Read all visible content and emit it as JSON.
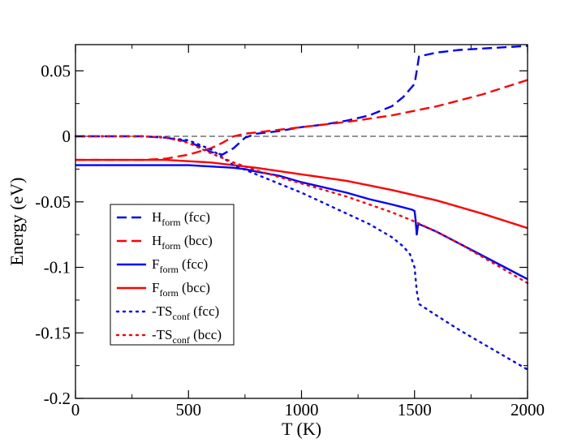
{
  "chart_data": {
    "type": "line",
    "xlabel": "T (K)",
    "ylabel": "Energy (eV)",
    "xlim": [
      0,
      2000
    ],
    "ylim": [
      -0.2,
      0.07
    ],
    "x_ticks": [
      0,
      500,
      1000,
      1500,
      2000
    ],
    "x_tick_labels": [
      "0",
      "500",
      "1000",
      "1500",
      "2000"
    ],
    "y_ticks": [
      0.05,
      0,
      -0.05,
      -0.1,
      -0.15,
      -0.2
    ],
    "y_tick_labels": [
      "0.05",
      "0",
      "-0.05",
      "-0.1",
      "-0.15",
      "-0.2"
    ],
    "zero_line": true,
    "legend_position": "center-left",
    "series": [
      {
        "name": "H_form (fcc)",
        "label": "H",
        "sub": "form",
        "suffix": " (fcc)",
        "color": "#0000ff",
        "style": "dashed",
        "points": [
          [
            0,
            0
          ],
          [
            300,
            0
          ],
          [
            400,
            -0.001
          ],
          [
            500,
            -0.004
          ],
          [
            550,
            -0.008
          ],
          [
            600,
            -0.012
          ],
          [
            650,
            -0.014
          ],
          [
            700,
            -0.009
          ],
          [
            750,
            -0.001
          ],
          [
            800,
            0.002
          ],
          [
            900,
            0.004
          ],
          [
            1000,
            0.007
          ],
          [
            1100,
            0.009
          ],
          [
            1200,
            0.012
          ],
          [
            1300,
            0.016
          ],
          [
            1400,
            0.023
          ],
          [
            1450,
            0.03
          ],
          [
            1480,
            0.036
          ],
          [
            1500,
            0.04
          ],
          [
            1510,
            0.05
          ],
          [
            1520,
            0.061
          ],
          [
            1600,
            0.064
          ],
          [
            1700,
            0.066
          ],
          [
            1800,
            0.067
          ],
          [
            1900,
            0.068
          ],
          [
            2000,
            0.069
          ]
        ]
      },
      {
        "name": "H_form (bcc)",
        "label": "H",
        "sub": "form",
        "suffix": " (bcc)",
        "color": "#ff0000",
        "style": "dashed",
        "points": [
          [
            0,
            -0.018
          ],
          [
            300,
            -0.018
          ],
          [
            400,
            -0.017
          ],
          [
            500,
            -0.014
          ],
          [
            600,
            -0.009
          ],
          [
            650,
            -0.005
          ],
          [
            700,
            0
          ],
          [
            750,
            0.002
          ],
          [
            800,
            0.003
          ],
          [
            900,
            0.005
          ],
          [
            1000,
            0.007
          ],
          [
            1200,
            0.011
          ],
          [
            1400,
            0.016
          ],
          [
            1600,
            0.023
          ],
          [
            1800,
            0.032
          ],
          [
            2000,
            0.043
          ]
        ]
      },
      {
        "name": "F_form (fcc)",
        "label": "F",
        "sub": "form",
        "suffix": " (fcc)",
        "color": "#0000ff",
        "style": "solid",
        "points": [
          [
            0,
            -0.022
          ],
          [
            300,
            -0.022
          ],
          [
            400,
            -0.022
          ],
          [
            500,
            -0.022
          ],
          [
            600,
            -0.023
          ],
          [
            700,
            -0.024
          ],
          [
            750,
            -0.025
          ],
          [
            800,
            -0.027
          ],
          [
            900,
            -0.03
          ],
          [
            1000,
            -0.035
          ],
          [
            1100,
            -0.039
          ],
          [
            1200,
            -0.043
          ],
          [
            1300,
            -0.048
          ],
          [
            1400,
            -0.052
          ],
          [
            1490,
            -0.056
          ],
          [
            1500,
            -0.057
          ],
          [
            1505,
            -0.064
          ],
          [
            1510,
            -0.075
          ],
          [
            1515,
            -0.068
          ],
          [
            1520,
            -0.067
          ],
          [
            1600,
            -0.073
          ],
          [
            1700,
            -0.082
          ],
          [
            1800,
            -0.091
          ],
          [
            1900,
            -0.1
          ],
          [
            2000,
            -0.109
          ]
        ]
      },
      {
        "name": "F_form (bcc)",
        "label": "F",
        "sub": "form",
        "suffix": " (bcc)",
        "color": "#ff0000",
        "style": "solid",
        "points": [
          [
            0,
            -0.018
          ],
          [
            300,
            -0.018
          ],
          [
            400,
            -0.018
          ],
          [
            500,
            -0.019
          ],
          [
            600,
            -0.02
          ],
          [
            700,
            -0.022
          ],
          [
            800,
            -0.024
          ],
          [
            1000,
            -0.029
          ],
          [
            1200,
            -0.034
          ],
          [
            1400,
            -0.041
          ],
          [
            1500,
            -0.045
          ],
          [
            1600,
            -0.049
          ],
          [
            1800,
            -0.059
          ],
          [
            2000,
            -0.07
          ]
        ]
      },
      {
        "name": "-TS_conf (fcc)",
        "label": "-TS",
        "sub": "conf",
        "suffix": " (fcc)",
        "color": "#0000ff",
        "style": "dotted",
        "points": [
          [
            0,
            0
          ],
          [
            300,
            0
          ],
          [
            400,
            -0.001
          ],
          [
            500,
            -0.003
          ],
          [
            600,
            -0.01
          ],
          [
            700,
            -0.022
          ],
          [
            800,
            -0.029
          ],
          [
            900,
            -0.036
          ],
          [
            1000,
            -0.043
          ],
          [
            1100,
            -0.051
          ],
          [
            1200,
            -0.059
          ],
          [
            1300,
            -0.067
          ],
          [
            1400,
            -0.077
          ],
          [
            1450,
            -0.084
          ],
          [
            1480,
            -0.09
          ],
          [
            1500,
            -0.1
          ],
          [
            1510,
            -0.118
          ],
          [
            1520,
            -0.128
          ],
          [
            1600,
            -0.137
          ],
          [
            1700,
            -0.148
          ],
          [
            1800,
            -0.158
          ],
          [
            1900,
            -0.168
          ],
          [
            2000,
            -0.178
          ]
        ]
      },
      {
        "name": "-TS_conf (bcc)",
        "label": "-TS",
        "sub": "conf",
        "suffix": " (bcc)",
        "color": "#ff0000",
        "style": "dotted",
        "points": [
          [
            0,
            0
          ],
          [
            300,
            0
          ],
          [
            400,
            -0.001
          ],
          [
            500,
            -0.005
          ],
          [
            600,
            -0.013
          ],
          [
            700,
            -0.02
          ],
          [
            800,
            -0.026
          ],
          [
            900,
            -0.031
          ],
          [
            1000,
            -0.036
          ],
          [
            1100,
            -0.041
          ],
          [
            1200,
            -0.046
          ],
          [
            1300,
            -0.052
          ],
          [
            1400,
            -0.058
          ],
          [
            1500,
            -0.065
          ],
          [
            1600,
            -0.073
          ],
          [
            1700,
            -0.082
          ],
          [
            1800,
            -0.092
          ],
          [
            1900,
            -0.102
          ],
          [
            2000,
            -0.112
          ]
        ]
      }
    ]
  }
}
